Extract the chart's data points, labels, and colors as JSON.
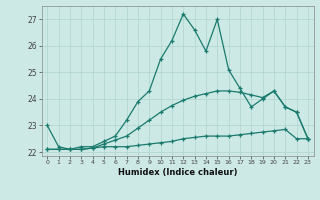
{
  "xlabel": "Humidex (Indice chaleur)",
  "background_color": "#cce9e5",
  "grid_color": "#b0d4cf",
  "line_color": "#1a7a6e",
  "xlim": [
    -0.5,
    23.5
  ],
  "ylim": [
    21.85,
    27.5
  ],
  "yticks": [
    22,
    23,
    24,
    25,
    26,
    27
  ],
  "xticks": [
    0,
    1,
    2,
    3,
    4,
    5,
    6,
    7,
    8,
    9,
    10,
    11,
    12,
    13,
    14,
    15,
    16,
    17,
    18,
    19,
    20,
    21,
    22,
    23
  ],
  "series1_y": [
    23.0,
    22.2,
    22.1,
    22.2,
    22.2,
    22.4,
    22.6,
    23.2,
    23.9,
    24.3,
    25.5,
    26.2,
    27.2,
    26.6,
    25.8,
    27.0,
    25.1,
    24.4,
    23.7,
    24.0,
    24.3,
    23.7,
    23.5,
    22.5
  ],
  "series2_y": [
    22.1,
    22.1,
    22.1,
    22.1,
    22.15,
    22.2,
    22.2,
    22.2,
    22.25,
    22.3,
    22.35,
    22.4,
    22.5,
    22.55,
    22.6,
    22.6,
    22.6,
    22.65,
    22.7,
    22.75,
    22.8,
    22.85,
    22.5,
    22.5
  ],
  "series3_y": [
    22.1,
    22.1,
    22.1,
    22.1,
    22.15,
    22.3,
    22.45,
    22.6,
    22.9,
    23.2,
    23.5,
    23.75,
    23.95,
    24.1,
    24.2,
    24.3,
    24.3,
    24.25,
    24.15,
    24.05,
    24.3,
    23.7,
    23.5,
    22.5
  ]
}
